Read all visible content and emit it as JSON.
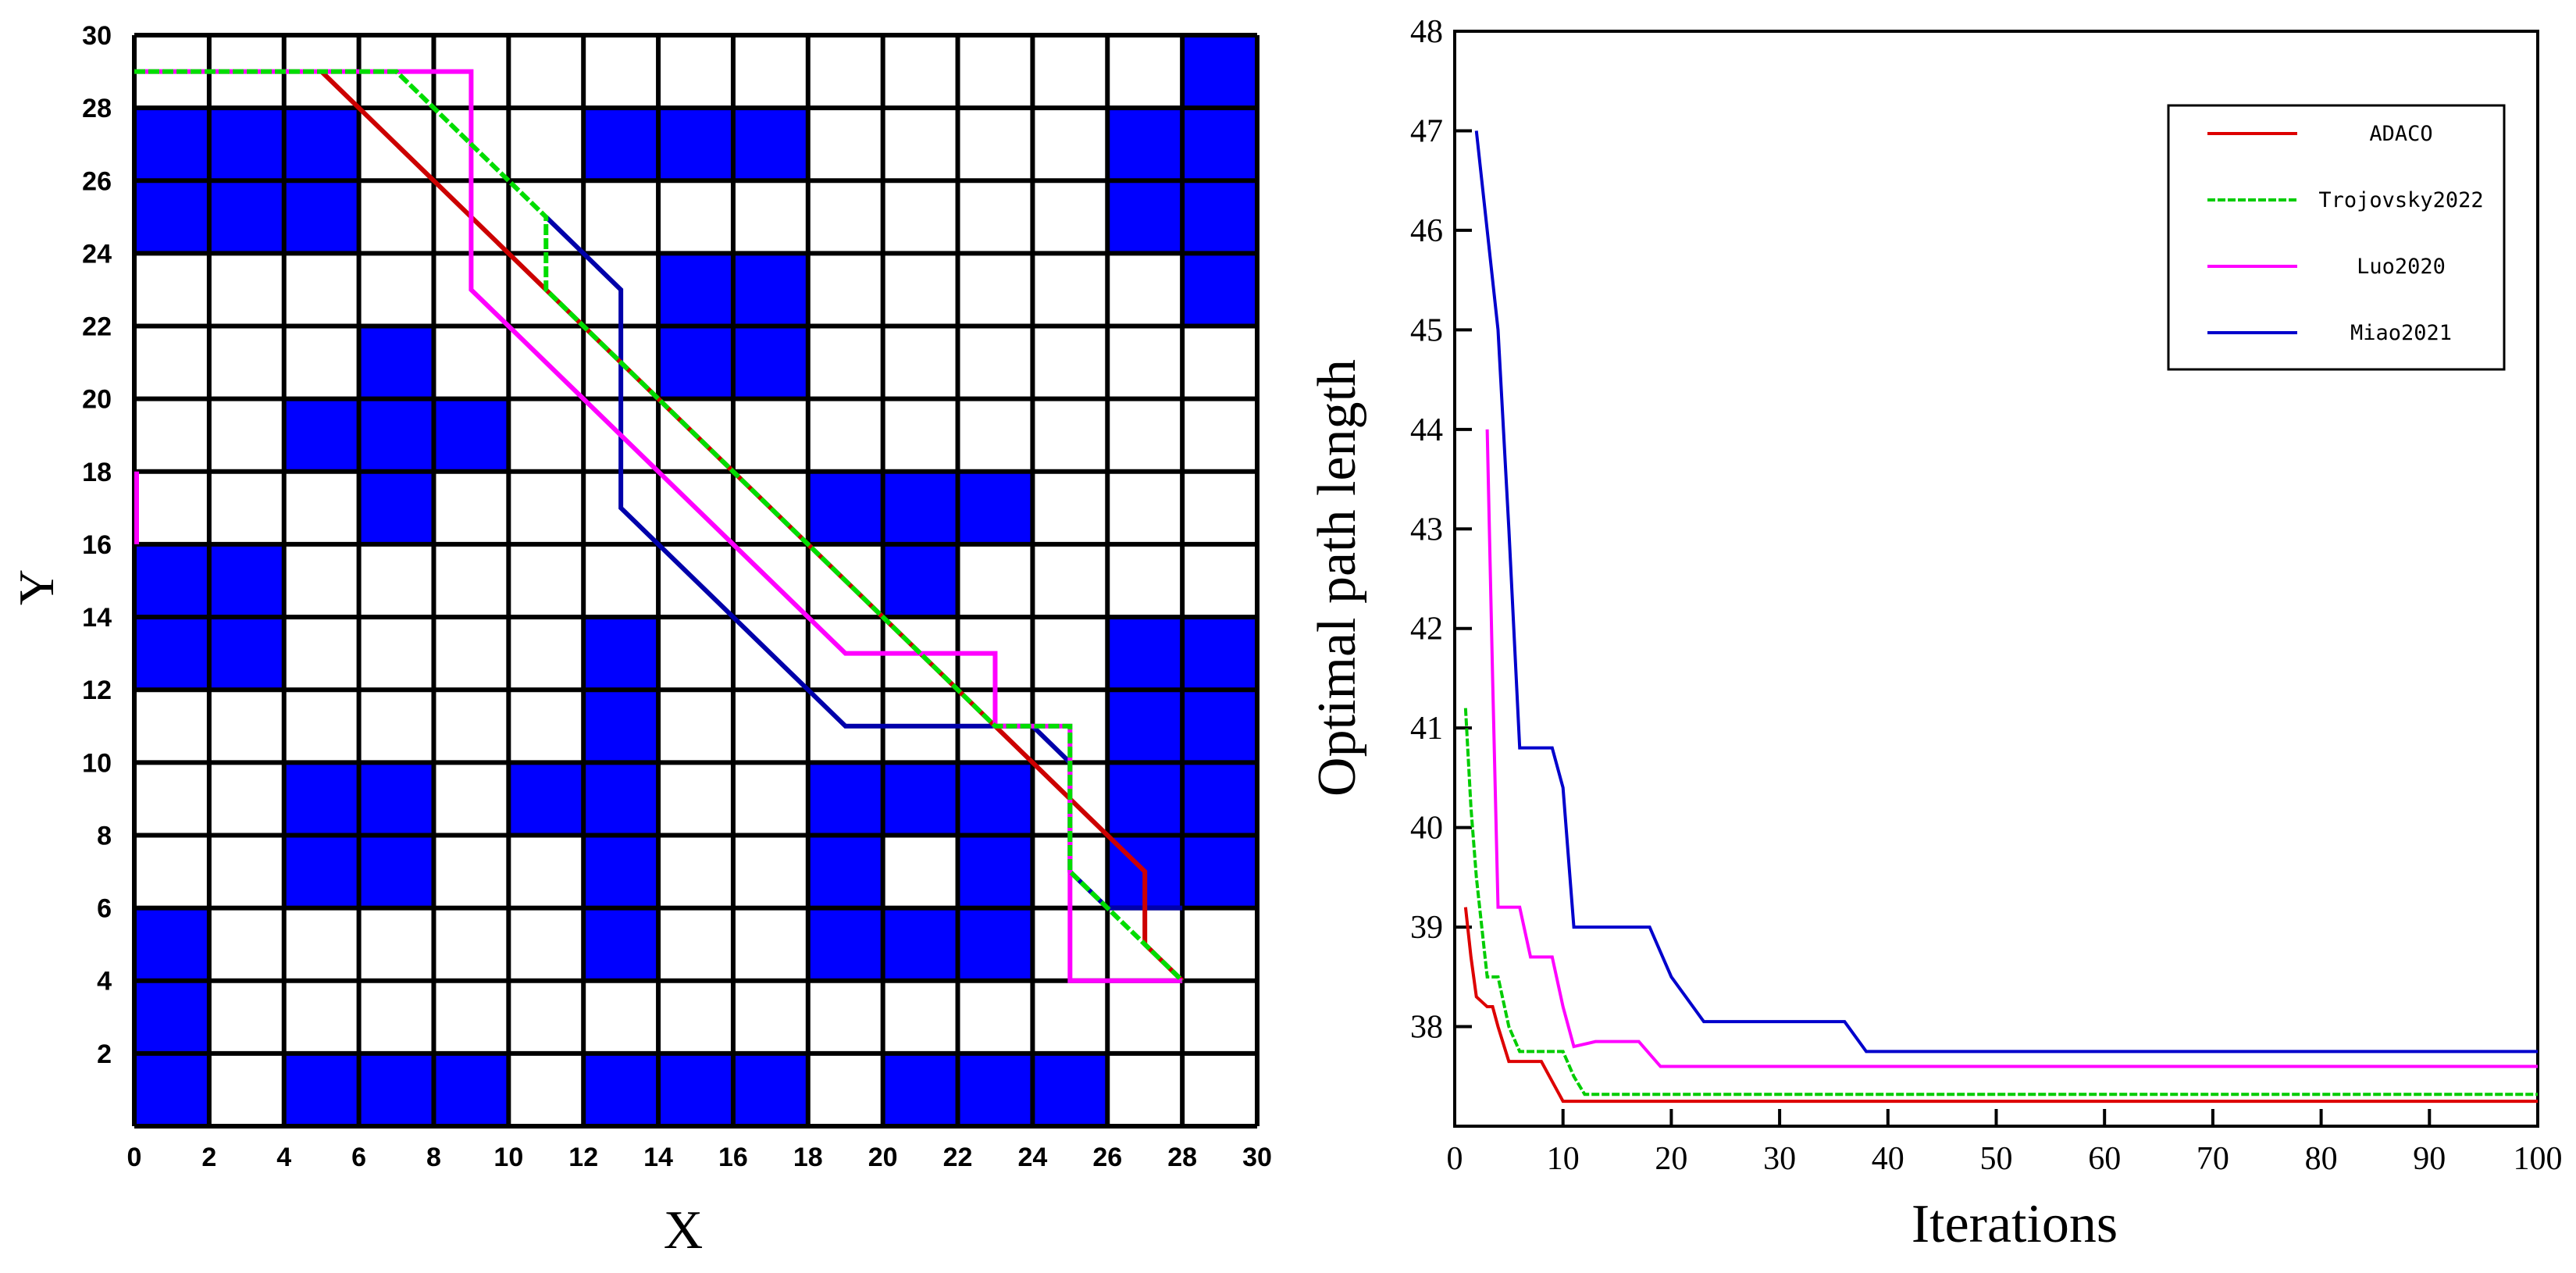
{
  "chart_data": [
    {
      "type": "grid-path",
      "xlabel": "X",
      "ylabel": "Y",
      "xlim": [
        0,
        30
      ],
      "ylim": [
        0,
        30
      ],
      "xticks": [
        0,
        2,
        4,
        6,
        8,
        10,
        12,
        14,
        16,
        18,
        20,
        22,
        24,
        26,
        28,
        30
      ],
      "yticks": [
        2,
        4,
        6,
        8,
        10,
        12,
        14,
        16,
        18,
        20,
        22,
        24,
        26,
        28,
        30
      ],
      "cell_size": 2,
      "grid_on": true,
      "obstacle_color": "#0000ff",
      "obstacles": [
        [
          0,
          28,
          6,
          24
        ],
        [
          12,
          28,
          18,
          26
        ],
        [
          26,
          28,
          28,
          24
        ],
        [
          28,
          30,
          30,
          22
        ],
        [
          14,
          24,
          18,
          20
        ],
        [
          6,
          22,
          8,
          16
        ],
        [
          4,
          20,
          10,
          18
        ],
        [
          0,
          16,
          4,
          12
        ],
        [
          18,
          18,
          24,
          16
        ],
        [
          20,
          16,
          22,
          14
        ],
        [
          12,
          14,
          14,
          4
        ],
        [
          10,
          10,
          12,
          8
        ],
        [
          4,
          10,
          8,
          6
        ],
        [
          26,
          14,
          30,
          6
        ],
        [
          18,
          10,
          24,
          4
        ],
        [
          0,
          6,
          2,
          0
        ],
        [
          4,
          2,
          10,
          0
        ],
        [
          12,
          2,
          18,
          0
        ],
        [
          20,
          2,
          26,
          0
        ]
      ],
      "free_cells_inside_obstacles": [
        [
          20,
          8,
          22,
          6
        ]
      ],
      "start_marker": {
        "x": 0,
        "y": 16,
        "y2": 18,
        "color": "#ff00ff"
      },
      "series": [
        {
          "name": "ADACO",
          "color": "#cc0000",
          "points": [
            [
              5,
              29
            ],
            [
              11,
              23
            ],
            [
              13,
              21
            ],
            [
              23,
              11
            ],
            [
              27,
              7
            ],
            [
              27,
              5
            ],
            [
              28,
              4
            ]
          ]
        },
        {
          "name": "Trojovsky2022",
          "color": "#00dd00",
          "dashed": true,
          "points": [
            [
              0,
              29
            ],
            [
              7,
              29
            ],
            [
              11,
              25
            ],
            [
              11,
              23
            ],
            [
              23,
              11
            ],
            [
              25,
              11
            ],
            [
              25,
              7
            ],
            [
              28,
              4
            ]
          ]
        },
        {
          "name": "Luo2020",
          "color": "#ff00ff",
          "points": [
            [
              0,
              29
            ],
            [
              9,
              29
            ],
            [
              9,
              23
            ],
            [
              19,
              13
            ],
            [
              23,
              13
            ],
            [
              23,
              11
            ],
            [
              25,
              11
            ],
            [
              25,
              4
            ],
            [
              28,
              4
            ]
          ]
        },
        {
          "name": "Miao2021",
          "color": "#0000aa",
          "points": [
            [
              11,
              25
            ],
            [
              12,
              24
            ],
            [
              13,
              23
            ],
            [
              13,
              17
            ],
            [
              19,
              11
            ],
            [
              24,
              11
            ],
            [
              25,
              10
            ],
            [
              25,
              7
            ],
            [
              26,
              6
            ],
            [
              28,
              6
            ]
          ]
        }
      ]
    },
    {
      "type": "line",
      "xlabel": "Iterations",
      "ylabel": "Optimal path length",
      "xlim": [
        0,
        100
      ],
      "ylim": [
        37,
        48
      ],
      "xticks": [
        0,
        10,
        20,
        30,
        40,
        50,
        60,
        70,
        80,
        90,
        100
      ],
      "yticks": [
        38,
        39,
        40,
        41,
        42,
        43,
        44,
        45,
        46,
        47,
        48
      ],
      "legend_position": "top-right",
      "series": [
        {
          "name": "ADACO",
          "color": "#dd0000",
          "points": [
            [
              1,
              39.2
            ],
            [
              1.5,
              38.7
            ],
            [
              2,
              38.3
            ],
            [
              3,
              38.2
            ],
            [
              3.5,
              38.2
            ],
            [
              4,
              38.0
            ],
            [
              5,
              37.65
            ],
            [
              8,
              37.65
            ],
            [
              9,
              37.45
            ],
            [
              10,
              37.25
            ],
            [
              100,
              37.25
            ]
          ]
        },
        {
          "name": "Trojovsky2022",
          "color": "#00cc00",
          "dashed": true,
          "points": [
            [
              1,
              41.2
            ],
            [
              1.5,
              40.2
            ],
            [
              2,
              39.5
            ],
            [
              3,
              38.5
            ],
            [
              4,
              38.5
            ],
            [
              5,
              38.0
            ],
            [
              6,
              37.75
            ],
            [
              10,
              37.75
            ],
            [
              11,
              37.5
            ],
            [
              12,
              37.32
            ],
            [
              100,
              37.32
            ]
          ]
        },
        {
          "name": "Luo2020",
          "color": "#ff00ff",
          "points": [
            [
              3,
              44.0
            ],
            [
              3.5,
              41.5
            ],
            [
              4,
              39.2
            ],
            [
              5,
              39.2
            ],
            [
              6,
              39.2
            ],
            [
              7,
              38.7
            ],
            [
              9,
              38.7
            ],
            [
              10,
              38.2
            ],
            [
              11,
              37.8
            ],
            [
              13,
              37.85
            ],
            [
              17,
              37.85
            ],
            [
              19,
              37.6
            ],
            [
              100,
              37.6
            ]
          ]
        },
        {
          "name": "Miao2021",
          "color": "#0000cc",
          "points": [
            [
              2,
              47.0
            ],
            [
              2.5,
              46.5
            ],
            [
              3,
              46.0
            ],
            [
              4,
              45.0
            ],
            [
              5,
              43.0
            ],
            [
              6,
              40.8
            ],
            [
              9,
              40.8
            ],
            [
              10,
              40.4
            ],
            [
              11,
              39.0
            ],
            [
              18,
              39.0
            ],
            [
              20,
              38.5
            ],
            [
              23,
              38.05
            ],
            [
              36,
              38.05
            ],
            [
              38,
              37.75
            ],
            [
              100,
              37.75
            ]
          ]
        }
      ]
    }
  ]
}
